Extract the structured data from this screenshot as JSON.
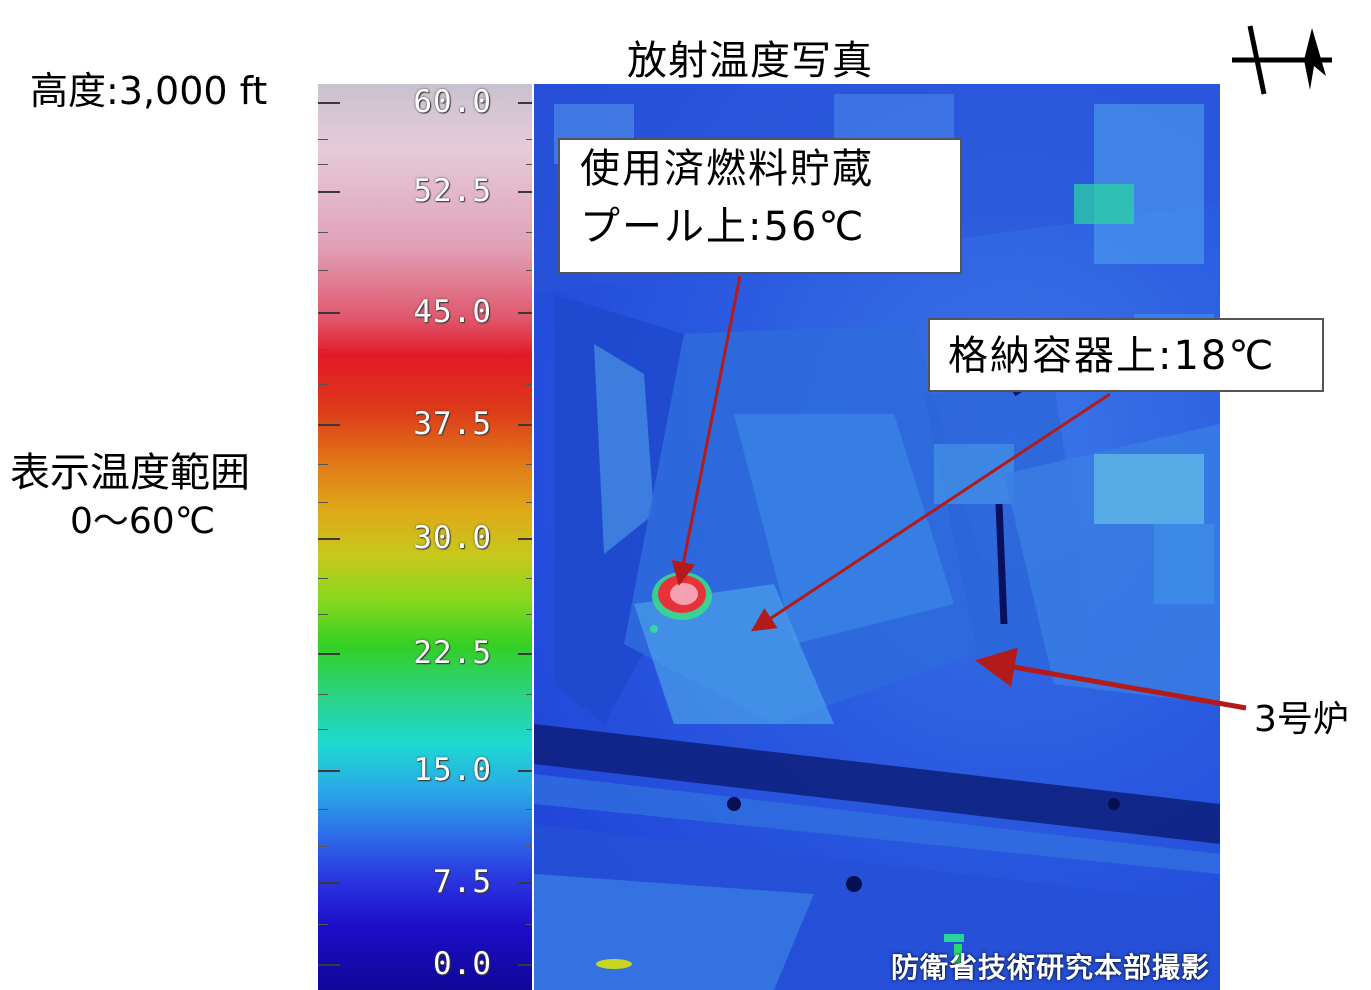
{
  "title": "放射温度写真",
  "altitude": "高度:3,000 ft",
  "display_range": {
    "line1": "表示温度範囲",
    "line2": "0〜60℃"
  },
  "color_scale": {
    "labels": [
      "60.0",
      "52.5",
      "45.0",
      "37.5",
      "30.0",
      "22.5",
      "15.0",
      "7.5",
      "0.0"
    ],
    "min_c": 0,
    "max_c": 60
  },
  "callouts": {
    "spent_fuel_pool": {
      "line1": "使用済燃料貯蔵",
      "line2": "プール上:56℃"
    },
    "containment_vessel": {
      "text": "格納容器上:18℃"
    }
  },
  "reactor_label": "3号炉",
  "credit": "防衛省技術研究本部撮影",
  "colors": {
    "arrow": "#b31b1b",
    "callout_border": "#555555",
    "hotspot": "#e8323a"
  },
  "icons": {
    "north_arrow": "north-arrow-icon"
  }
}
